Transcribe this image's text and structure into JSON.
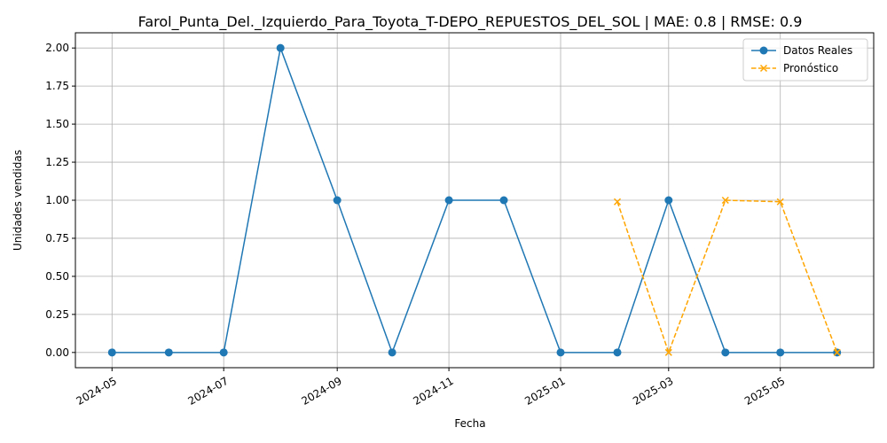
{
  "chart_data": {
    "type": "line",
    "title": "Farol_Punta_Del._Izquierdo_Para_Toyota_T-DEPO_REPUESTOS_DEL_SOL | MAE: 0.8 | RMSE: 0.9",
    "xlabel": "Fecha",
    "ylabel": "Unidades vendidas",
    "x_ticks": [
      "2024-05",
      "2024-07",
      "2024-09",
      "2024-11",
      "2025-01",
      "2025-03",
      "2025-05"
    ],
    "y_ticks": [
      "0.00",
      "0.25",
      "0.50",
      "0.75",
      "1.00",
      "1.25",
      "1.50",
      "1.75",
      "2.00"
    ],
    "xlim": [
      "2024-04-11",
      "2025-06-21"
    ],
    "ylim": [
      -0.1,
      2.1
    ],
    "grid": true,
    "legend_position": "upper right",
    "series": [
      {
        "name": "Datos Reales",
        "color": "#1f77b4",
        "line_style": "solid",
        "marker": "circle",
        "x": [
          "2024-05-01",
          "2024-06-01",
          "2024-07-01",
          "2024-08-01",
          "2024-09-01",
          "2024-10-01",
          "2024-11-01",
          "2024-12-01",
          "2025-01-01",
          "2025-02-01",
          "2025-03-01",
          "2025-04-01",
          "2025-05-01",
          "2025-06-01"
        ],
        "values": [
          0,
          0,
          0,
          2,
          1,
          0,
          1,
          1,
          0,
          0,
          1,
          0,
          0,
          0
        ]
      },
      {
        "name": "Pronóstico",
        "color": "#ffa500",
        "line_style": "dashed",
        "marker": "x",
        "x": [
          "2025-02-01",
          "2025-03-01",
          "2025-04-01",
          "2025-05-01",
          "2025-06-01"
        ],
        "values": [
          0.99,
          0.0,
          1.0,
          0.99,
          0.0
        ]
      }
    ]
  }
}
